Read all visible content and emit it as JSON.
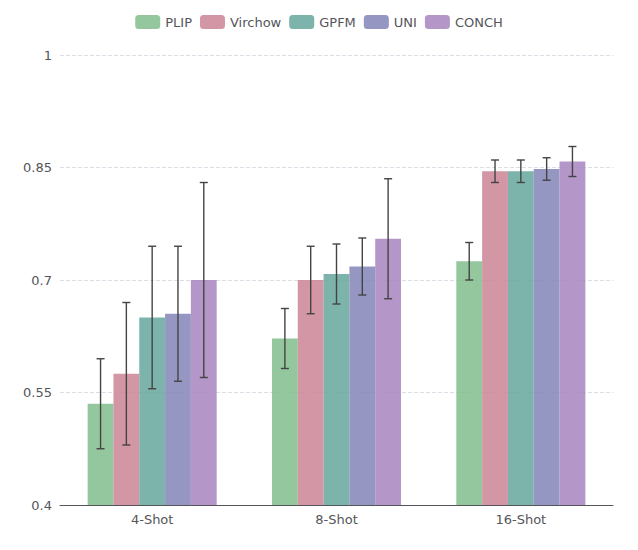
{
  "chart_data": {
    "type": "bar",
    "categories": [
      "4-Shot",
      "8-Shot",
      "16-Shot"
    ],
    "series": [
      {
        "name": "PLIP",
        "color": "#85bf90",
        "values": [
          0.535,
          0.622,
          0.725
        ],
        "errors": [
          0.06,
          0.04,
          0.025
        ]
      },
      {
        "name": "Virchow",
        "color": "#cc8899",
        "values": [
          0.575,
          0.7,
          0.845
        ],
        "errors": [
          0.095,
          0.045,
          0.015
        ]
      },
      {
        "name": "GPFM",
        "color": "#6aa89e",
        "values": [
          0.65,
          0.708,
          0.845
        ],
        "errors": [
          0.095,
          0.04,
          0.015
        ]
      },
      {
        "name": "UNI",
        "color": "#8888bb",
        "values": [
          0.655,
          0.718,
          0.848
        ],
        "errors": [
          0.09,
          0.038,
          0.015
        ]
      },
      {
        "name": "CONCH",
        "color": "#aa88c0",
        "values": [
          0.7,
          0.755,
          0.858
        ],
        "errors": [
          0.13,
          0.08,
          0.02
        ]
      }
    ],
    "ylim": [
      0.4,
      1.0
    ],
    "yticks": [
      0.4,
      0.55,
      0.7,
      0.85,
      1
    ],
    "grid": true,
    "legend": "top"
  }
}
